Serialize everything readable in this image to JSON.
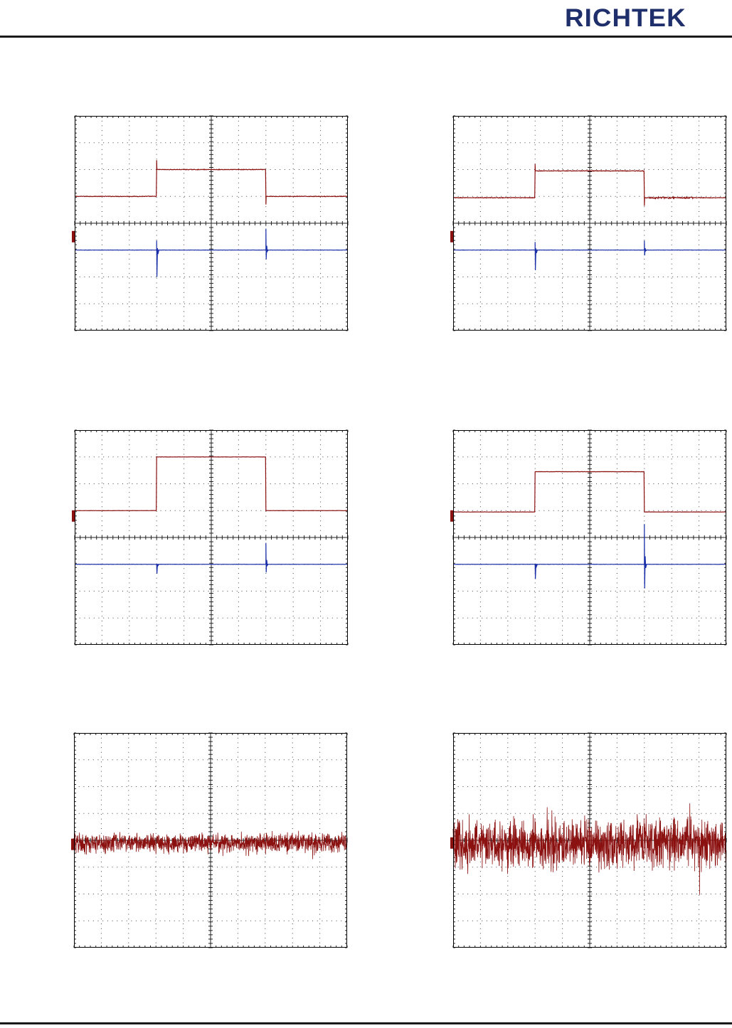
{
  "header": {
    "brand": "RICHTEK",
    "brand_color": "#1f2f6b"
  },
  "colors": {
    "trace_red": "#8b1010",
    "trace_blue": "#1a2fa8",
    "grid": "#444444",
    "frame": "#000000"
  },
  "chart_data": [
    {
      "type": "line",
      "grid": true,
      "title": "",
      "xlabel": "",
      "ylabel": "",
      "xlim": [
        0,
        10
      ],
      "ylim": [
        -4,
        4
      ],
      "series": [
        {
          "color": "#8b1010",
          "kind": "step",
          "base": 1.0,
          "level": 2.0,
          "rise": 3.0,
          "fall": 7.0,
          "spike_up": 0.35,
          "spike_down": 0.3,
          "ripple": 0.0,
          "noise": 0.02
        },
        {
          "color": "#1a2fa8",
          "kind": "spikes",
          "base": -1.0,
          "spikes": [
            {
              "x": 3.0,
              "up": 0.35,
              "down": 1.0
            },
            {
              "x": 7.0,
              "up": 0.8,
              "down": 0.35
            }
          ],
          "noise": 0.01
        }
      ],
      "markers": {
        "ch2": -0.5
      }
    },
    {
      "type": "line",
      "grid": true,
      "title": "",
      "xlabel": "",
      "ylabel": "",
      "xlim": [
        0,
        10
      ],
      "ylim": [
        -4,
        4
      ],
      "series": [
        {
          "color": "#8b1010",
          "kind": "step",
          "base": 0.95,
          "level": 1.95,
          "rise": 3.0,
          "fall": 7.0,
          "spike_up": 0.25,
          "spike_down": 0.3,
          "ripple": 0.05,
          "noise": 0.02
        },
        {
          "color": "#1a2fa8",
          "kind": "spikes",
          "base": -1.0,
          "spikes": [
            {
              "x": 3.0,
              "up": 0.3,
              "down": 0.75
            },
            {
              "x": 7.0,
              "up": 0.35,
              "down": 0.2
            }
          ],
          "noise": 0.01
        }
      ],
      "markers": {
        "ch2": -0.5
      }
    },
    {
      "type": "line",
      "grid": true,
      "title": "",
      "xlabel": "",
      "ylabel": "",
      "xlim": [
        0,
        10
      ],
      "ylim": [
        -4,
        4
      ],
      "series": [
        {
          "color": "#8b1010",
          "kind": "step",
          "base": 1.0,
          "level": 3.0,
          "rise": 3.0,
          "fall": 7.0,
          "spike_up": 0.0,
          "spike_down": 0.0,
          "ripple": 0.0,
          "noise": 0.01
        },
        {
          "color": "#1a2fa8",
          "kind": "spikes",
          "base": -1.0,
          "spikes": [
            {
              "x": 3.0,
              "up": 0.0,
              "down": 0.35
            },
            {
              "x": 7.0,
              "up": 0.8,
              "down": 0.3
            }
          ],
          "noise": 0.01
        }
      ],
      "markers": {
        "ch2": 0.8
      }
    },
    {
      "type": "line",
      "grid": true,
      "title": "",
      "xlabel": "",
      "ylabel": "",
      "xlim": [
        0,
        10
      ],
      "ylim": [
        -4,
        4
      ],
      "series": [
        {
          "color": "#8b1010",
          "kind": "step",
          "base": 0.95,
          "level": 2.45,
          "rise": 3.0,
          "fall": 7.0,
          "spike_up": 0.0,
          "spike_down": 0.0,
          "ripple": 0.0,
          "noise": 0.01
        },
        {
          "color": "#1a2fa8",
          "kind": "spikes",
          "base": -1.0,
          "spikes": [
            {
              "x": 3.0,
              "up": 0.0,
              "down": 0.55
            },
            {
              "x": 7.0,
              "up": 1.5,
              "down": 0.9
            }
          ],
          "noise": 0.01
        }
      ],
      "markers": {
        "ch2": 0.8
      }
    },
    {
      "type": "line",
      "grid": true,
      "title": "",
      "xlabel": "",
      "ylabel": "",
      "xlim": [
        0,
        10
      ],
      "ylim": [
        -4,
        4
      ],
      "series": [
        {
          "color": "#8b1010",
          "kind": "noise",
          "base": -0.1,
          "amplitude": 0.28,
          "seed": 7
        }
      ],
      "markers": {
        "ch2": -0.15
      }
    },
    {
      "type": "line",
      "grid": true,
      "title": "",
      "xlabel": "",
      "ylabel": "",
      "xlim": [
        0,
        10
      ],
      "ylim": [
        -4,
        4
      ],
      "series": [
        {
          "color": "#8b1010",
          "kind": "noise",
          "base": -0.1,
          "amplitude": 0.7,
          "seed": 19
        }
      ],
      "markers": {
        "ch2": -0.1
      }
    }
  ]
}
